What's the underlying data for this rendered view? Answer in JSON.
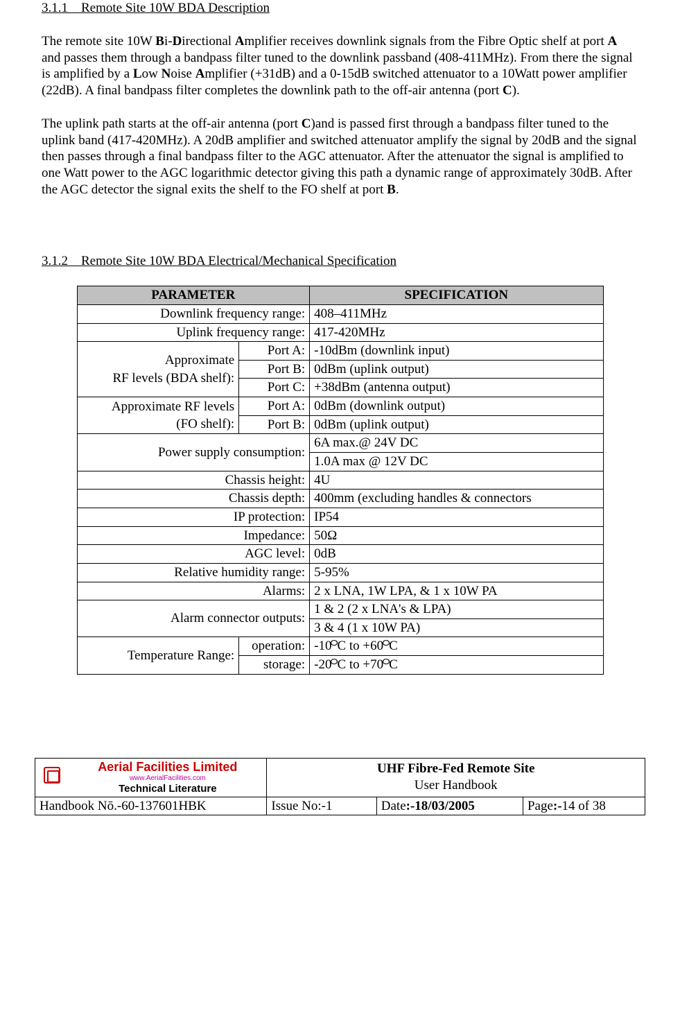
{
  "section1": {
    "num": "3.1.1",
    "title": "Remote Site 10W BDA Description"
  },
  "para1": "The remote site 10W <b>B</b>i-<b>D</b>irectional <b>A</b>mplifier receives downlink signals from the Fibre Optic shelf at port <b>A</b> and passes them through a bandpass filter tuned to the downlink passband (408-411MHz). From there the signal is amplified by a <b>L</b>ow <b>N</b>oise <b>A</b>mplifier (+31dB) and a 0-15dB switched attenuator to a 10Watt power amplifier (22dB). A final bandpass filter completes the downlink path to the off-air antenna (port <b>C</b>).",
  "para2": "The uplink path starts at the off-air antenna (port <b>C</b>)and is passed first through a bandpass filter tuned to the uplink band (417-420MHz). A 20dB amplifier and switched attenuator amplify the signal by 20dB and the signal then passes through a final bandpass filter to the AGC attenuator. After the attenuator the signal is amplified to one Watt power to the AGC logarithmic detector giving this path a dynamic range of approximately 30dB. After the AGC detector the signal exits the shelf to the FO shelf at port <b>B</b>.",
  "section2": {
    "num": "3.1.2",
    "title": "Remote Site 10W BDA Electrical/Mechanical Specification"
  },
  "table": {
    "header": {
      "param": "PARAMETER",
      "spec": "SPECIFICATION"
    },
    "header_bg": "#c0c0c0",
    "border_color": "#000000",
    "rows": [
      {
        "param": "Downlink frequency range:",
        "spec": "408–411MHz"
      },
      {
        "param": "Uplink frequency range:",
        "spec": "417-420MHz"
      },
      {
        "param_group": "Approximate<br>RF levels (BDA shelf):",
        "sub": "Port A:",
        "spec": "-10dBm (downlink input)"
      },
      {
        "sub": "Port B:",
        "spec": "0dBm (uplink output)"
      },
      {
        "sub": "Port C:",
        "spec": "+38dBm (antenna output)"
      },
      {
        "param_group": "Approximate RF levels<br>(FO shelf):",
        "sub": "Port A:",
        "spec": "0dBm (downlink output)"
      },
      {
        "sub": "Port B:",
        "spec": "0dBm (uplink output)"
      },
      {
        "param_group2": "Power supply consumption:",
        "spec": "6A max.@ 24V DC"
      },
      {
        "spec": "1.0A max @ 12V DC"
      },
      {
        "param": "Chassis height:",
        "spec": "4U"
      },
      {
        "param": "Chassis depth:",
        "spec": "400mm (excluding handles & connectors"
      },
      {
        "param": "IP protection:",
        "spec": "IP54"
      },
      {
        "param": "Impedance:",
        "spec": "50Ω"
      },
      {
        "param": "AGC level:",
        "spec": "0dB"
      },
      {
        "param": "Relative humidity range:",
        "spec": "5-95%"
      },
      {
        "param": "Alarms:",
        "spec": "2 x LNA, 1W LPA, & 1 x 10W PA"
      },
      {
        "param_group2": "Alarm connector outputs:",
        "spec": "1 & 2 (2 x LNA's & LPA)"
      },
      {
        "spec": "3 & 4 (1 x 10W PA)"
      },
      {
        "param_group": "Temperature Range:",
        "sub": "operation:",
        "spec": "-10°C to +60°C",
        "deg": true
      },
      {
        "sub": "storage:",
        "spec": "-20°C to +70°C",
        "deg": true
      }
    ]
  },
  "footer": {
    "brand_line1": "Aerial   Facilities   Limited",
    "brand_url": "www.AerialFacilities.com",
    "brand_line2": "Technical Literature",
    "title_bold": "UHF Fibre-Fed Remote Site",
    "title_plain": "User Handbook",
    "handbook": "Handbook Nō.-60-137601HBK",
    "issue": "Issue No:-1",
    "date_label": "Date",
    "date_bold": ":-18/03/2005",
    "page_label": "Page",
    "page_bold": ":-",
    "page_rest": "14 of 38"
  }
}
